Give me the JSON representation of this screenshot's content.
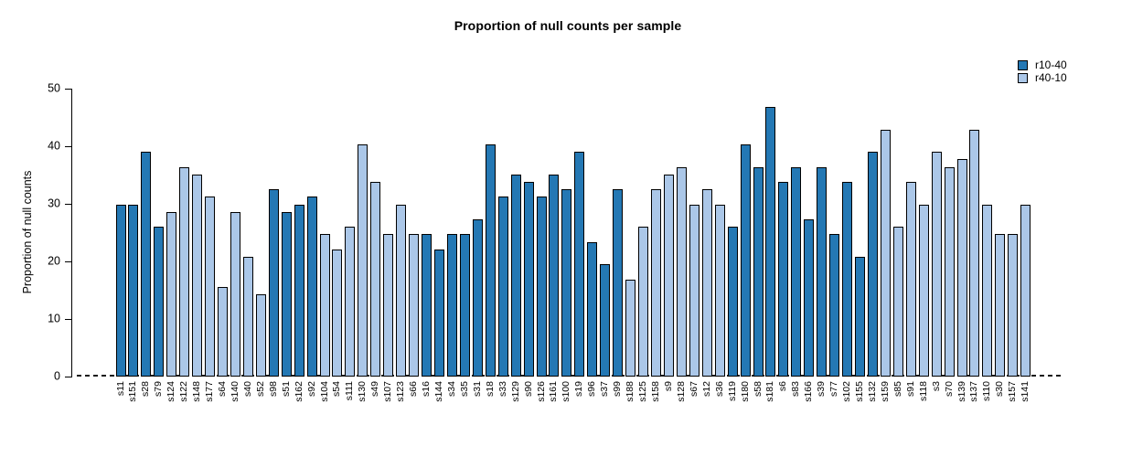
{
  "title": "Proportion of null counts per sample",
  "y_axis": {
    "label": "Proportion of null counts",
    "ticks": [
      0,
      10,
      20,
      30,
      40,
      50
    ]
  },
  "legend": {
    "items": [
      {
        "label": "r10-40",
        "color": "#2478b4"
      },
      {
        "label": "r40-10",
        "color": "#abc7e8"
      }
    ]
  },
  "chart_data": {
    "type": "bar",
    "title": "Proportion of null counts per sample",
    "xlabel": "",
    "ylabel": "Proportion of null counts",
    "ylim": [
      0,
      50
    ],
    "y_ticks": [
      0,
      10,
      20,
      30,
      40,
      50
    ],
    "grid": false,
    "legend_position": "top-right",
    "baseline_style": "dashed",
    "series": [
      {
        "name": "r10-40",
        "color": "#2478b4"
      },
      {
        "name": "r40-10",
        "color": "#abc7e8"
      }
    ],
    "categories": [
      "s11",
      "s151",
      "s28",
      "s79",
      "s124",
      "s122",
      "s148",
      "s177",
      "s64",
      "s140",
      "s40",
      "s52",
      "s98",
      "s51",
      "s162",
      "s92",
      "s104",
      "s54",
      "s111",
      "s130",
      "s49",
      "s107",
      "s123",
      "s66",
      "s16",
      "s144",
      "s34",
      "s35",
      "s31",
      "s18",
      "s33",
      "s129",
      "s90",
      "s126",
      "s161",
      "s100",
      "s19",
      "s96",
      "s37",
      "s99",
      "s188",
      "s125",
      "s158",
      "s9",
      "s128",
      "s67",
      "s12",
      "s36",
      "s119",
      "s180",
      "s58",
      "s181",
      "s6",
      "s83",
      "s166",
      "s39",
      "s77",
      "s102",
      "s155",
      "s132",
      "s159",
      "s85",
      "s91",
      "s118",
      "s3",
      "s70",
      "s139",
      "s137",
      "s110",
      "s30",
      "s157",
      "s141"
    ],
    "values": [
      29.9,
      29.9,
      39.0,
      26.0,
      28.6,
      36.4,
      35.1,
      31.2,
      15.6,
      28.6,
      20.8,
      14.3,
      32.5,
      28.6,
      29.9,
      31.2,
      24.7,
      22.1,
      26.0,
      40.3,
      33.8,
      24.7,
      29.9,
      24.7,
      24.7,
      22.1,
      24.7,
      24.7,
      27.3,
      40.3,
      31.2,
      35.1,
      33.8,
      31.2,
      35.1,
      32.5,
      39.0,
      23.4,
      19.5,
      32.5,
      16.9,
      26.0,
      32.5,
      35.1,
      36.4,
      29.9,
      32.5,
      29.9,
      26.0,
      40.3,
      36.4,
      46.8,
      33.8,
      36.4,
      27.3,
      36.4,
      24.7,
      33.8,
      20.8,
      39.0,
      42.9,
      26.0,
      33.8,
      29.9,
      39.0,
      36.4,
      37.7,
      42.9,
      29.9,
      24.7,
      24.7,
      29.9
    ],
    "groups": [
      "r10-40",
      "r10-40",
      "r10-40",
      "r10-40",
      "r40-10",
      "r40-10",
      "r40-10",
      "r40-10",
      "r40-10",
      "r40-10",
      "r40-10",
      "r40-10",
      "r10-40",
      "r10-40",
      "r10-40",
      "r10-40",
      "r40-10",
      "r40-10",
      "r40-10",
      "r40-10",
      "r40-10",
      "r40-10",
      "r40-10",
      "r40-10",
      "r10-40",
      "r10-40",
      "r10-40",
      "r10-40",
      "r10-40",
      "r10-40",
      "r10-40",
      "r10-40",
      "r10-40",
      "r10-40",
      "r10-40",
      "r10-40",
      "r10-40",
      "r10-40",
      "r10-40",
      "r10-40",
      "r40-10",
      "r40-10",
      "r40-10",
      "r40-10",
      "r40-10",
      "r40-10",
      "r40-10",
      "r40-10",
      "r10-40",
      "r10-40",
      "r10-40",
      "r10-40",
      "r10-40",
      "r10-40",
      "r10-40",
      "r10-40",
      "r10-40",
      "r10-40",
      "r10-40",
      "r10-40",
      "r40-10",
      "r40-10",
      "r40-10",
      "r40-10",
      "r40-10",
      "r40-10",
      "r40-10",
      "r40-10",
      "r40-10",
      "r40-10",
      "r40-10",
      "r40-10"
    ]
  }
}
